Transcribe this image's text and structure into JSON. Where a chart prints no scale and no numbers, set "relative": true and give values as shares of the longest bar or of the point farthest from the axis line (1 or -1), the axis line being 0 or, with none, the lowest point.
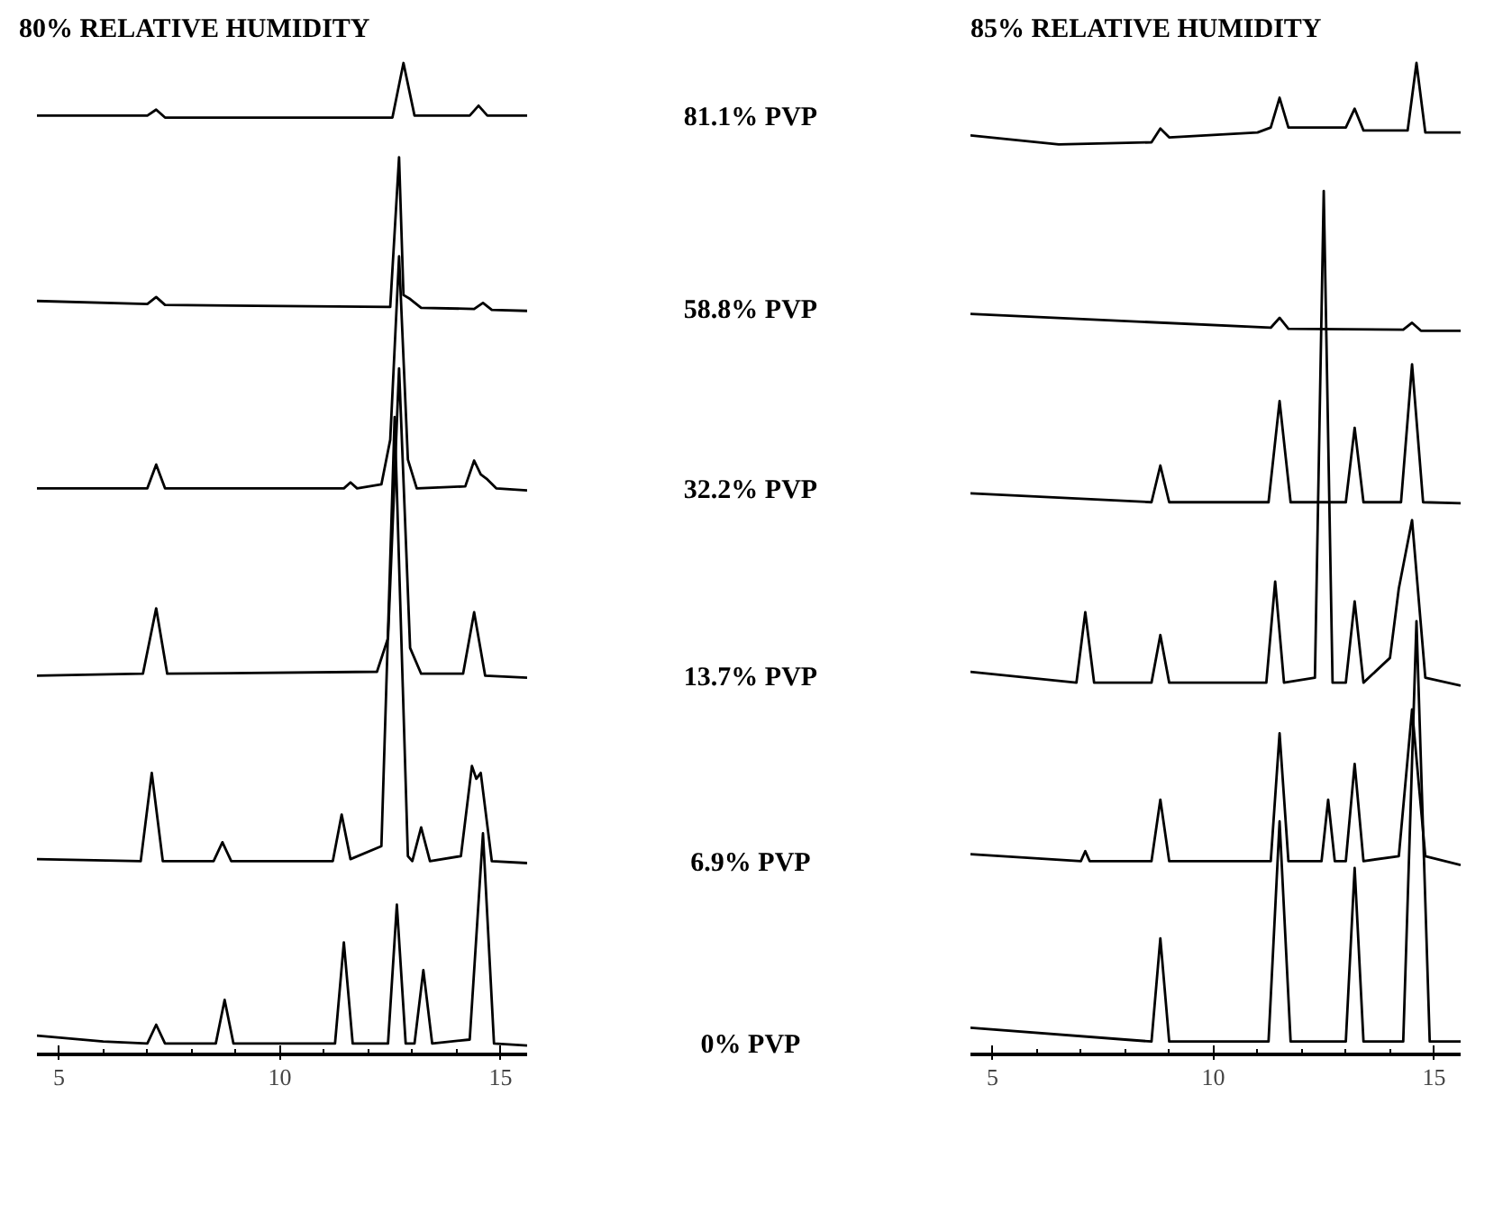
{
  "chart_data": [
    {
      "type": "line",
      "relative": true,
      "title": "80% RELATIVE HUMIDITY",
      "xlim": [
        4.5,
        15.6
      ],
      "xticks": [
        5,
        10,
        15
      ],
      "grid": false,
      "series": [
        {
          "name": "81.1% PVP",
          "color": "#000000",
          "x": [
            4.5,
            7.0,
            7.2,
            7.4,
            12.55,
            12.8,
            13.05,
            14.3,
            14.5,
            14.7,
            15.6
          ],
          "values": [
            0.947,
            0.947,
            0.953,
            0.945,
            0.945,
            1.0,
            0.947,
            0.947,
            0.957,
            0.947,
            0.947
          ]
        },
        {
          "name": "58.8% PVP",
          "color": "#000000",
          "x": [
            4.5,
            7.0,
            7.2,
            7.4,
            12.5,
            12.7,
            12.8,
            12.95,
            13.2,
            14.4,
            14.6,
            14.8,
            15.6
          ],
          "values": [
            0.76,
            0.757,
            0.764,
            0.756,
            0.754,
            0.905,
            0.766,
            0.762,
            0.753,
            0.752,
            0.758,
            0.751,
            0.75
          ]
        },
        {
          "name": "32.2% PVP",
          "color": "#000000",
          "x": [
            4.5,
            7.0,
            7.2,
            7.4,
            11.45,
            11.6,
            11.75,
            12.3,
            12.5,
            12.7,
            12.9,
            13.1,
            14.2,
            14.4,
            14.55,
            14.7,
            14.9,
            15.6
          ],
          "values": [
            0.571,
            0.571,
            0.595,
            0.571,
            0.571,
            0.577,
            0.571,
            0.575,
            0.62,
            0.805,
            0.6,
            0.571,
            0.573,
            0.599,
            0.585,
            0.58,
            0.571,
            0.569
          ]
        },
        {
          "name": "13.7% PVP",
          "color": "#000000",
          "x": [
            4.5,
            6.9,
            7.2,
            7.45,
            12.2,
            12.45,
            12.7,
            12.95,
            13.2,
            14.15,
            14.4,
            14.65,
            15.6
          ],
          "values": [
            0.382,
            0.384,
            0.45,
            0.384,
            0.386,
            0.42,
            0.692,
            0.41,
            0.384,
            0.384,
            0.446,
            0.382,
            0.38
          ]
        },
        {
          "name": "6.9% PVP",
          "color": "#000000",
          "x": [
            4.5,
            6.85,
            7.1,
            7.35,
            8.5,
            8.7,
            8.9,
            11.2,
            11.4,
            11.6,
            12.3,
            12.6,
            12.9,
            13.0,
            13.2,
            13.4,
            14.1,
            14.35,
            14.45,
            14.55,
            14.8,
            15.6
          ],
          "values": [
            0.197,
            0.195,
            0.284,
            0.195,
            0.195,
            0.214,
            0.195,
            0.195,
            0.242,
            0.197,
            0.21,
            0.643,
            0.2,
            0.195,
            0.229,
            0.195,
            0.2,
            0.291,
            0.278,
            0.284,
            0.195,
            0.193
          ]
        },
        {
          "name": "0% PVP",
          "color": "#000000",
          "x": [
            4.5,
            6.0,
            7.0,
            7.2,
            7.4,
            8.55,
            8.75,
            8.95,
            11.25,
            11.45,
            11.65,
            12.45,
            12.65,
            12.85,
            13.05,
            13.25,
            13.45,
            14.3,
            14.6,
            14.85,
            15.6
          ],
          "values": [
            0.019,
            0.013,
            0.011,
            0.03,
            0.011,
            0.011,
            0.055,
            0.011,
            0.011,
            0.113,
            0.011,
            0.011,
            0.151,
            0.011,
            0.011,
            0.085,
            0.011,
            0.015,
            0.223,
            0.011,
            0.009
          ]
        }
      ]
    },
    {
      "type": "line",
      "relative": true,
      "title": "85% RELATIVE HUMIDITY",
      "xlim": [
        4.5,
        15.6
      ],
      "xticks": [
        5,
        10,
        15
      ],
      "grid": false,
      "series": [
        {
          "color": "#000000",
          "x": [
            4.5,
            6.5,
            8.6,
            8.8,
            9.0,
            11.0,
            11.3,
            11.5,
            11.7,
            13.0,
            13.2,
            13.4,
            14.4,
            14.6,
            14.8,
            15.6
          ],
          "values": [
            0.927,
            0.918,
            0.92,
            0.934,
            0.925,
            0.93,
            0.935,
            0.965,
            0.935,
            0.935,
            0.954,
            0.932,
            0.932,
            1.0,
            0.93,
            0.93
          ]
        },
        {
          "color": "#000000",
          "x": [
            4.5,
            11.3,
            11.5,
            11.7,
            14.3,
            14.5,
            14.7,
            15.6
          ],
          "values": [
            0.747,
            0.733,
            0.743,
            0.732,
            0.731,
            0.738,
            0.73,
            0.73
          ]
        },
        {
          "color": "#000000",
          "x": [
            4.5,
            8.6,
            8.8,
            9.0,
            11.25,
            11.5,
            11.75,
            13.0,
            13.2,
            13.4,
            14.25,
            14.5,
            14.75,
            15.6
          ],
          "values": [
            0.566,
            0.557,
            0.594,
            0.557,
            0.557,
            0.659,
            0.557,
            0.557,
            0.632,
            0.557,
            0.557,
            0.696,
            0.557,
            0.556
          ]
        },
        {
          "color": "#000000",
          "x": [
            4.5,
            6.9,
            7.1,
            7.3,
            8.6,
            8.8,
            9.0,
            11.2,
            11.4,
            11.6,
            12.3,
            12.5,
            12.7,
            13.0,
            13.2,
            13.4,
            14.0,
            14.2,
            14.5,
            14.8,
            15.6
          ],
          "values": [
            0.386,
            0.375,
            0.446,
            0.375,
            0.375,
            0.423,
            0.375,
            0.375,
            0.477,
            0.375,
            0.38,
            0.871,
            0.375,
            0.375,
            0.457,
            0.375,
            0.4,
            0.47,
            0.539,
            0.38,
            0.372
          ]
        },
        {
          "color": "#000000",
          "x": [
            4.5,
            7.0,
            7.1,
            7.2,
            8.6,
            8.8,
            9.0,
            11.3,
            11.5,
            11.7,
            12.45,
            12.6,
            12.75,
            13.0,
            13.2,
            13.4,
            14.2,
            14.5,
            14.8,
            15.6
          ],
          "values": [
            0.202,
            0.195,
            0.205,
            0.195,
            0.195,
            0.257,
            0.195,
            0.195,
            0.324,
            0.195,
            0.195,
            0.257,
            0.195,
            0.195,
            0.293,
            0.195,
            0.2,
            0.348,
            0.2,
            0.191
          ]
        },
        {
          "color": "#000000",
          "x": [
            4.5,
            8.0,
            8.6,
            8.8,
            9.0,
            11.25,
            11.5,
            11.75,
            13.0,
            13.2,
            13.4,
            14.3,
            14.6,
            14.9,
            15.6
          ],
          "values": [
            0.027,
            0.015,
            0.013,
            0.117,
            0.013,
            0.013,
            0.235,
            0.013,
            0.013,
            0.188,
            0.013,
            0.013,
            0.437,
            0.013,
            0.013
          ]
        }
      ]
    }
  ]
}
